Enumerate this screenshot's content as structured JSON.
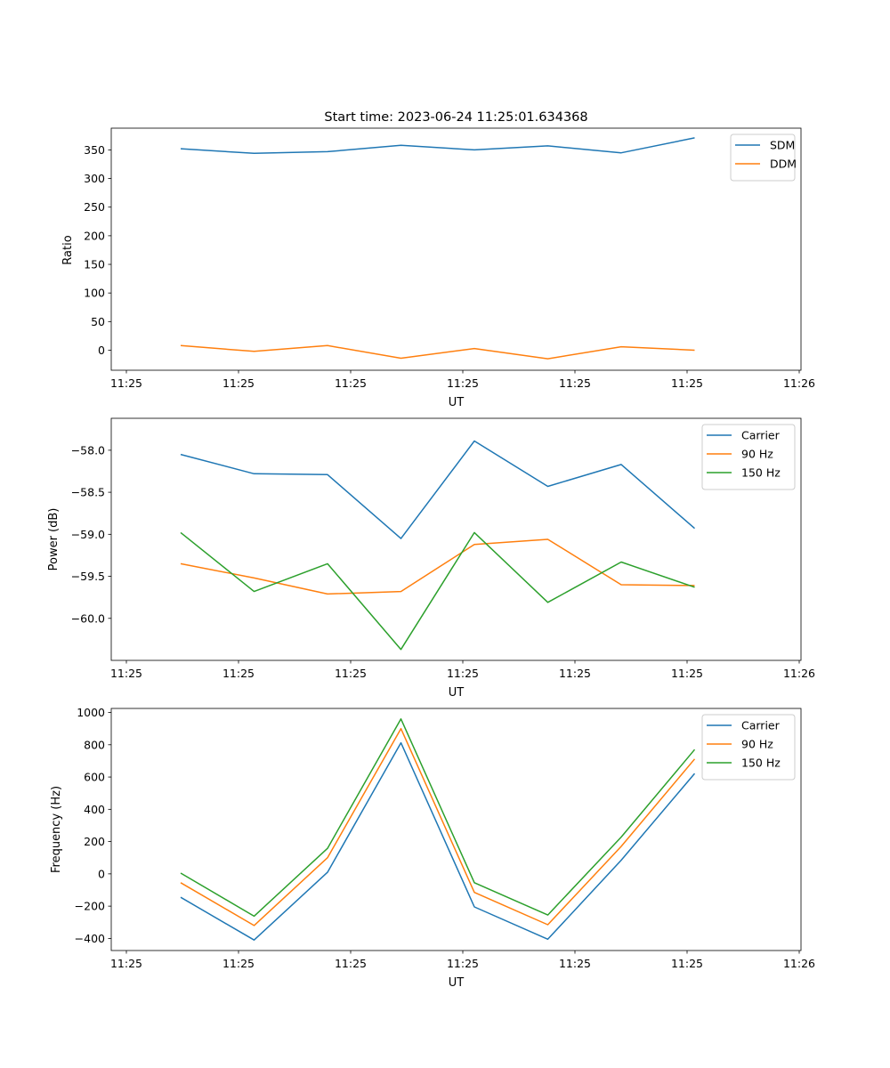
{
  "chart_data": [
    {
      "type": "line",
      "title": "Start time: 2023-06-24 11:25:01.634368",
      "xlabel": "UT",
      "ylabel": "Ratio",
      "x_tick_labels": [
        "11:25",
        "11:25",
        "11:25",
        "11:25",
        "11:25",
        "11:25",
        "11:26"
      ],
      "y_ticks": [
        0,
        50,
        100,
        150,
        200,
        250,
        300,
        350
      ],
      "ylim": [
        -35,
        388
      ],
      "legend_position": "top-right",
      "grid": false,
      "series": [
        {
          "name": "SDM",
          "color": "#1f77b4",
          "values": [
            352,
            344,
            347,
            358,
            350,
            357,
            345,
            371
          ]
        },
        {
          "name": "DDM",
          "color": "#ff7f0e",
          "values": [
            8,
            -2,
            8,
            -14,
            3,
            -15,
            6,
            0
          ]
        }
      ]
    },
    {
      "type": "line",
      "title": "",
      "xlabel": "UT",
      "ylabel": "Power (dB)",
      "x_tick_labels": [
        "11:25",
        "11:25",
        "11:25",
        "11:25",
        "11:25",
        "11:25",
        "11:26"
      ],
      "y_ticks": [
        -60.0,
        -59.5,
        -59.0,
        -58.5,
        -58.0
      ],
      "y_tick_labels": [
        "−60.0",
        "−59.5",
        "−59.0",
        "−58.5",
        "−58.0"
      ],
      "ylim": [
        -60.5,
        -57.62
      ],
      "legend_position": "top-right",
      "grid": false,
      "series": [
        {
          "name": "Carrier",
          "color": "#1f77b4",
          "values": [
            -58.05,
            -58.28,
            -58.29,
            -59.05,
            -57.89,
            -58.43,
            -58.17,
            -58.93
          ]
        },
        {
          "name": "90 Hz",
          "color": "#ff7f0e",
          "values": [
            -59.35,
            -59.52,
            -59.71,
            -59.68,
            -59.12,
            -59.06,
            -59.6,
            -59.61
          ]
        },
        {
          "name": "150 Hz",
          "color": "#2ca02c",
          "values": [
            -58.98,
            -59.68,
            -59.35,
            -60.37,
            -58.98,
            -59.81,
            -59.33,
            -59.63
          ]
        }
      ]
    },
    {
      "type": "line",
      "title": "",
      "xlabel": "UT",
      "ylabel": "Frequency (Hz)",
      "x_tick_labels": [
        "11:25",
        "11:25",
        "11:25",
        "11:25",
        "11:25",
        "11:25",
        "11:26"
      ],
      "y_ticks": [
        -400,
        -200,
        0,
        200,
        400,
        600,
        800,
        1000
      ],
      "y_tick_labels": [
        "−400",
        "−200",
        "0",
        "200",
        "400",
        "600",
        "800",
        "1000"
      ],
      "ylim": [
        -475,
        1025
      ],
      "legend_position": "top-right",
      "grid": false,
      "series": [
        {
          "name": "Carrier",
          "color": "#1f77b4",
          "values": [
            -145,
            -410,
            10,
            812,
            -205,
            -405,
            85,
            622
          ]
        },
        {
          "name": "90 Hz",
          "color": "#ff7f0e",
          "values": [
            -55,
            -320,
            100,
            900,
            -115,
            -315,
            170,
            712
          ]
        },
        {
          "name": "150 Hz",
          "color": "#2ca02c",
          "values": [
            5,
            -262,
            158,
            960,
            -55,
            -255,
            228,
            770
          ]
        }
      ]
    }
  ]
}
